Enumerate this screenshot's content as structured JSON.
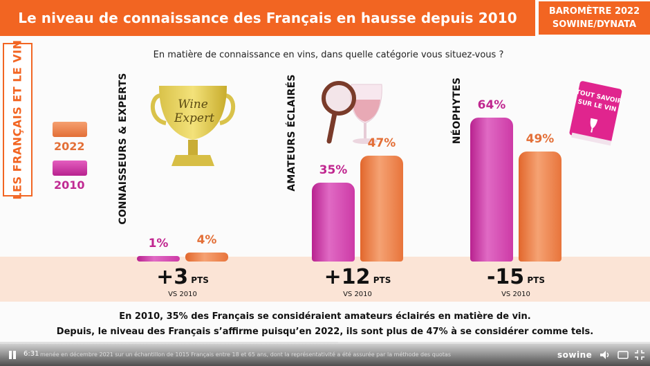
{
  "header": {
    "title": "Le niveau de connaissance des Français en hausse depuis 2010",
    "badge_line1": "BAROMÈTRE 2022",
    "badge_line2": "SOWINE/DYNATA"
  },
  "sidebar": {
    "title": "LES FRANÇAIS ET LE VIN"
  },
  "question": "En matière de connaissance en vins, dans quelle catégorie vous situez-vous ?",
  "legend": {
    "label_2022": "2022",
    "label_2010": "2010"
  },
  "illustrations": {
    "trophy_text_line1": "Wine",
    "trophy_text_line2": "Expert",
    "book_text": "TOUT SAVOIR SUR LE VIN"
  },
  "chart_data": {
    "type": "bar",
    "categories": [
      "CONNAISSEURS & EXPERTS",
      "AMATEURS ÉCLAIRÉS",
      "NÉOPHYTES"
    ],
    "series": [
      {
        "name": "2010",
        "values": [
          1,
          35,
          64
        ],
        "labels": [
          "1%",
          "35%",
          "64%"
        ]
      },
      {
        "name": "2022",
        "values": [
          4,
          47,
          49
        ],
        "labels": [
          "4%",
          "47%",
          "49%"
        ]
      }
    ],
    "deltas": [
      {
        "value": "+3",
        "unit": "PTS",
        "vs": "VS 2010"
      },
      {
        "value": "+12",
        "unit": "PTS",
        "vs": "VS 2010"
      },
      {
        "value": "-15",
        "unit": "PTS",
        "vs": "VS 2010"
      }
    ],
    "colors": {
      "2010": "#c0268f",
      "2022": "#e36f37"
    }
  },
  "footer": {
    "line1": "En 2010, 35% des Français se considéraient amateurs éclairés en matière de vin.",
    "line2": "Depuis, le niveau des Français s’affirme puisqu’en 2022, ils sont plus de 47% à se considérer comme tels."
  },
  "player": {
    "time": "6:31",
    "footnote": "menée en décembre 2021 sur un échantillon de 1015 Français entre 18 et 65 ans, dont la représentativité a été assurée par la méthode des quotas",
    "brand": "sowine",
    "progress": 0.52,
    "icons": [
      "pause-icon",
      "volume-icon",
      "subtitles-icon",
      "exit-fullscreen-icon"
    ]
  }
}
